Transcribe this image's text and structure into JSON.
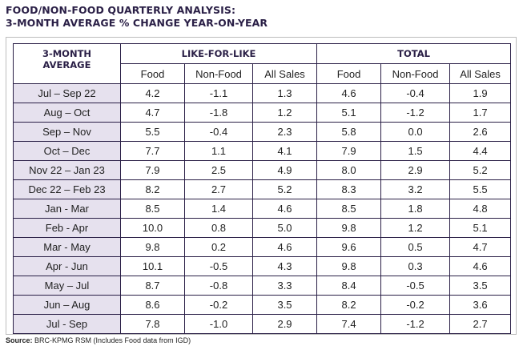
{
  "title_line1": "FOOD/NON-FOOD QUARTERLY ANALYSIS:",
  "title_line2": "3-MONTH AVERAGE % CHANGE YEAR-ON-YEAR",
  "source_label": "Source:",
  "source_text": "BRC-KPMG RSM (Includes Food data from IGD)",
  "chart_data": {
    "type": "table",
    "corner_header_line1": "3-MONTH",
    "corner_header_line2": "AVERAGE",
    "groups": [
      "LIKE-FOR-LIKE",
      "TOTAL"
    ],
    "columns": [
      "Food",
      "Non-Food",
      "All Sales",
      "Food",
      "Non-Food",
      "All Sales"
    ],
    "rows": [
      {
        "period": "Jul – Sep 22",
        "values": [
          "4.2",
          "-1.1",
          "1.3",
          "4.6",
          "-0.4",
          "1.9"
        ]
      },
      {
        "period": "Aug – Oct",
        "values": [
          "4.7",
          "-1.8",
          "1.2",
          "5.1",
          "-1.2",
          "1.7"
        ]
      },
      {
        "period": "Sep – Nov",
        "values": [
          "5.5",
          "-0.4",
          "2.3",
          "5.8",
          "0.0",
          "2.6"
        ]
      },
      {
        "period": "Oct – Dec",
        "values": [
          "7.7",
          "1.1",
          "4.1",
          "7.9",
          "1.5",
          "4.4"
        ]
      },
      {
        "period": "Nov 22 – Jan 23",
        "values": [
          "7.9",
          "2.5",
          "4.9",
          "8.0",
          "2.9",
          "5.2"
        ]
      },
      {
        "period": "Dec 22 – Feb 23",
        "values": [
          "8.2",
          "2.7",
          "5.2",
          "8.3",
          "3.2",
          "5.5"
        ]
      },
      {
        "period": "Jan - Mar",
        "values": [
          "8.5",
          "1.4",
          "4.6",
          "8.5",
          "1.8",
          "4.8"
        ]
      },
      {
        "period": "Feb - Apr",
        "values": [
          "10.0",
          "0.8",
          "5.0",
          "9.8",
          "1.2",
          "5.1"
        ]
      },
      {
        "period": "Mar - May",
        "values": [
          "9.8",
          "0.2",
          "4.6",
          "9.6",
          "0.5",
          "4.7"
        ]
      },
      {
        "period": "Apr - Jun",
        "values": [
          "10.1",
          "-0.5",
          "4.3",
          "9.8",
          "0.3",
          "4.6"
        ]
      },
      {
        "period": "May – Jul",
        "values": [
          "8.7",
          "-0.8",
          "3.3",
          "8.4",
          "-0.5",
          "3.5"
        ]
      },
      {
        "period": "Jun – Aug",
        "values": [
          "8.6",
          "-0.2",
          "3.5",
          "8.2",
          "-0.2",
          "3.6"
        ]
      },
      {
        "period": "Jul - Sep",
        "values": [
          "7.8",
          "-1.0",
          "2.9",
          "7.4",
          "-1.2",
          "2.7"
        ]
      }
    ]
  },
  "colors": {
    "title": "#2a1f46",
    "border": "#2a1f46",
    "row_label_bg": "#e6e1ee",
    "frame": "#bdbdbd"
  }
}
